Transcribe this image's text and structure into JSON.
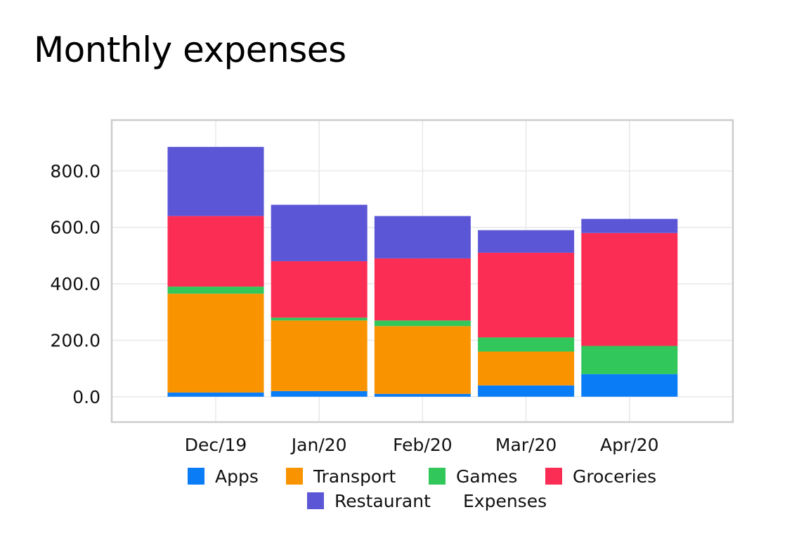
{
  "title": "Monthly expenses",
  "chart_data": {
    "type": "bar",
    "stacked": true,
    "title": "Monthly expenses",
    "xlabel": "",
    "ylabel": "",
    "categories": [
      "Dec/19",
      "Jan/20",
      "Feb/20",
      "Mar/20",
      "Apr/20"
    ],
    "ylim": [
      -90,
      980
    ],
    "yticks": [
      0,
      200,
      400,
      600,
      800
    ],
    "ytick_labels": [
      "0.0",
      "200.0",
      "400.0",
      "600.0",
      "800.0"
    ],
    "grid": true,
    "legend_position": "bottom",
    "series": [
      {
        "name": "Apps",
        "color": "#0a7cf6",
        "values": [
          15,
          20,
          10,
          40,
          80
        ]
      },
      {
        "name": "Transport",
        "color": "#fa9300",
        "values": [
          350,
          250,
          240,
          120,
          0
        ]
      },
      {
        "name": "Games",
        "color": "#32c75a",
        "values": [
          25,
          10,
          20,
          50,
          100
        ]
      },
      {
        "name": "Groceries",
        "color": "#fc2d55",
        "values": [
          250,
          200,
          220,
          300,
          400
        ]
      },
      {
        "name": "Restaurant",
        "color": "#5b56d6",
        "values": [
          245,
          200,
          150,
          80,
          50
        ]
      }
    ],
    "legend_extra": "Expenses"
  }
}
